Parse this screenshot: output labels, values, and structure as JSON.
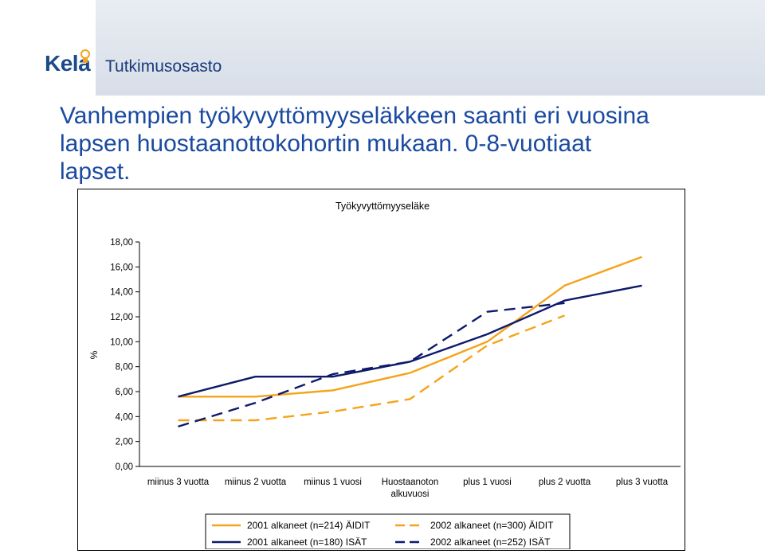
{
  "header": {
    "logo_text": "Kela",
    "department": "Tutkimusosasto"
  },
  "slide": {
    "title_lines": [
      "Vanhempien työkyvyttömyyseläkkeen saanti eri vuosina",
      "lapsen huostaanottokohortin mukaan. 0-8-vuotiaat",
      "lapset."
    ]
  },
  "colors": {
    "orange": "#f5a31a",
    "navy": "#0d1a6b",
    "title_blue": "#1a4aa0"
  },
  "chart_data": {
    "type": "line",
    "title": "Työkyvyttömyyseläke",
    "ylabel": "%",
    "xlabel": "",
    "ylim": [
      0,
      18
    ],
    "yticks": [
      "0,00",
      "2,00",
      "4,00",
      "6,00",
      "8,00",
      "10,00",
      "12,00",
      "14,00",
      "16,00",
      "18,00"
    ],
    "categories": [
      [
        "miinus 3 vuotta"
      ],
      [
        "miinus 2 vuotta"
      ],
      [
        "miinus 1 vuosi"
      ],
      [
        "Huostaanoton",
        "alkuvuosi"
      ],
      [
        "plus 1 vuosi"
      ],
      [
        "plus 2 vuotta"
      ],
      [
        "plus 3 vuotta"
      ]
    ],
    "grid": false,
    "legend_position": "bottom",
    "series": [
      {
        "name": "2001 alkaneet (n=214) ÄIDIT",
        "color": "#f5a31a",
        "dash": "solid",
        "values": [
          5.6,
          5.6,
          6.1,
          7.5,
          10.0,
          14.5,
          16.8
        ]
      },
      {
        "name": "2002 alkaneet (n=300) ÄIDIT",
        "color": "#f5a31a",
        "dash": "dashed",
        "values": [
          3.7,
          3.7,
          4.4,
          5.4,
          9.7,
          12.1,
          null
        ]
      },
      {
        "name": "2001 alkaneet (n=180) ISÄT",
        "color": "#0d1a6b",
        "dash": "solid",
        "values": [
          5.6,
          7.2,
          7.2,
          8.4,
          10.6,
          13.3,
          14.5
        ]
      },
      {
        "name": "2002 alkaneet (n=252) ISÄT",
        "color": "#0d1a6b",
        "dash": "dashed",
        "values": [
          3.2,
          5.1,
          7.4,
          8.4,
          12.4,
          13.1,
          null
        ]
      }
    ]
  }
}
